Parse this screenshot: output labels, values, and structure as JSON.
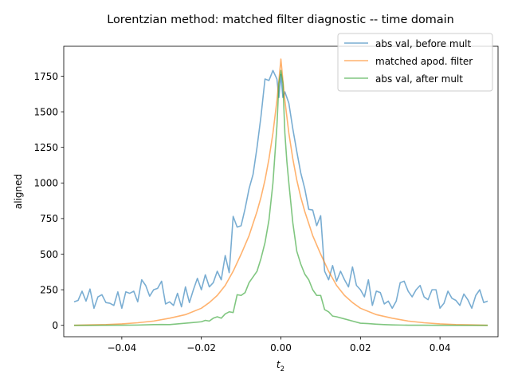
{
  "chart_data": {
    "type": "line",
    "title": "Lorentzian method:  matched filter diagnostic -- time domain",
    "xlabel_base": "t",
    "xlabel_sub": "2",
    "ylabel": "aligned",
    "xlim": [
      -0.0546,
      0.0546
    ],
    "ylim": [
      -80,
      1960
    ],
    "xticks": [
      -0.04,
      -0.02,
      0.0,
      0.02,
      0.04
    ],
    "xtick_labels": [
      "−0.04",
      "−0.02",
      "0.00",
      "0.02",
      "0.04"
    ],
    "yticks": [
      0,
      250,
      500,
      750,
      1000,
      1250,
      1500,
      1750
    ],
    "ytick_labels": [
      "0",
      "250",
      "500",
      "750",
      "1000",
      "1250",
      "1500",
      "1750"
    ],
    "grid": false,
    "legend_position": "top-right",
    "series": [
      {
        "name": "abs val, before mult",
        "color": "#1f77b4",
        "x": [
          -0.052,
          -0.051,
          -0.05,
          -0.049,
          -0.048,
          -0.047,
          -0.046,
          -0.045,
          -0.044,
          -0.043,
          -0.042,
          -0.041,
          -0.04,
          -0.039,
          -0.038,
          -0.037,
          -0.036,
          -0.035,
          -0.034,
          -0.033,
          -0.032,
          -0.031,
          -0.03,
          -0.029,
          -0.028,
          -0.027,
          -0.026,
          -0.025,
          -0.024,
          -0.023,
          -0.022,
          -0.021,
          -0.02,
          -0.019,
          -0.018,
          -0.017,
          -0.016,
          -0.015,
          -0.014,
          -0.013,
          -0.012,
          -0.011,
          -0.01,
          -0.009,
          -0.008,
          -0.007,
          -0.006,
          -0.005,
          -0.004,
          -0.003,
          -0.002,
          -0.001,
          -0.0005,
          0.0,
          0.0005,
          0.001,
          0.002,
          0.003,
          0.004,
          0.005,
          0.006,
          0.007,
          0.008,
          0.009,
          0.01,
          0.011,
          0.012,
          0.013,
          0.014,
          0.015,
          0.016,
          0.017,
          0.018,
          0.019,
          0.02,
          0.021,
          0.022,
          0.023,
          0.024,
          0.025,
          0.026,
          0.027,
          0.028,
          0.029,
          0.03,
          0.031,
          0.032,
          0.033,
          0.034,
          0.035,
          0.036,
          0.037,
          0.038,
          0.039,
          0.04,
          0.041,
          0.042,
          0.043,
          0.044,
          0.045,
          0.046,
          0.047,
          0.048,
          0.049,
          0.05,
          0.051,
          0.052
        ],
        "values": [
          165,
          175,
          240,
          170,
          255,
          120,
          200,
          215,
          160,
          155,
          140,
          235,
          120,
          235,
          225,
          240,
          165,
          320,
          280,
          205,
          250,
          260,
          310,
          150,
          165,
          140,
          225,
          130,
          270,
          160,
          250,
          330,
          250,
          355,
          270,
          300,
          380,
          320,
          490,
          370,
          765,
          690,
          700,
          820,
          960,
          1060,
          1250,
          1470,
          1730,
          1720,
          1790,
          1730,
          1600,
          1760,
          1600,
          1640,
          1560,
          1380,
          1220,
          1070,
          960,
          815,
          810,
          700,
          770,
          380,
          320,
          420,
          310,
          380,
          320,
          270,
          410,
          280,
          250,
          200,
          320,
          140,
          240,
          230,
          150,
          170,
          120,
          170,
          300,
          310,
          240,
          200,
          250,
          280,
          200,
          180,
          250,
          250,
          120,
          155,
          240,
          190,
          175,
          140,
          220,
          180,
          120,
          210,
          250,
          160,
          170
        ]
      },
      {
        "name": "matched apod. filter",
        "color": "#ff7f0e",
        "x": [
          -0.052,
          -0.048,
          -0.044,
          -0.04,
          -0.036,
          -0.032,
          -0.028,
          -0.024,
          -0.02,
          -0.018,
          -0.016,
          -0.014,
          -0.012,
          -0.01,
          -0.008,
          -0.006,
          -0.005,
          -0.004,
          -0.003,
          -0.002,
          -0.001,
          -0.0005,
          0.0,
          0.0005,
          0.001,
          0.002,
          0.003,
          0.004,
          0.005,
          0.006,
          0.008,
          0.01,
          0.012,
          0.014,
          0.016,
          0.018,
          0.02,
          0.024,
          0.028,
          0.032,
          0.036,
          0.04,
          0.044,
          0.048,
          0.052
        ],
        "values": [
          0,
          3,
          5,
          10,
          18,
          30,
          50,
          75,
          120,
          160,
          210,
          280,
          380,
          500,
          630,
          800,
          900,
          1020,
          1170,
          1350,
          1580,
          1720,
          1870,
          1720,
          1580,
          1350,
          1170,
          1020,
          900,
          800,
          630,
          500,
          380,
          280,
          210,
          160,
          120,
          75,
          50,
          30,
          18,
          10,
          5,
          3,
          0
        ]
      },
      {
        "name": "abs val, after mult",
        "color": "#2ca02c",
        "x": [
          -0.052,
          -0.048,
          -0.044,
          -0.04,
          -0.036,
          -0.032,
          -0.03,
          -0.028,
          -0.026,
          -0.024,
          -0.022,
          -0.02,
          -0.019,
          -0.018,
          -0.017,
          -0.016,
          -0.015,
          -0.014,
          -0.013,
          -0.012,
          -0.011,
          -0.01,
          -0.009,
          -0.008,
          -0.007,
          -0.006,
          -0.005,
          -0.004,
          -0.003,
          -0.002,
          -0.0015,
          -0.001,
          -0.0005,
          0.0,
          0.0005,
          0.001,
          0.0015,
          0.002,
          0.003,
          0.004,
          0.005,
          0.006,
          0.007,
          0.008,
          0.009,
          0.01,
          0.011,
          0.012,
          0.013,
          0.014,
          0.016,
          0.018,
          0.02,
          0.022,
          0.024,
          0.026,
          0.028,
          0.03,
          0.032,
          0.036,
          0.04,
          0.044,
          0.048,
          0.052
        ],
        "values": [
          0,
          0,
          1,
          1,
          2,
          5,
          6,
          5,
          10,
          15,
          20,
          25,
          35,
          30,
          50,
          60,
          50,
          80,
          95,
          90,
          215,
          210,
          230,
          300,
          340,
          380,
          470,
          580,
          740,
          1000,
          1200,
          1400,
          1700,
          1790,
          1700,
          1350,
          1150,
          1000,
          720,
          520,
          430,
          360,
          320,
          250,
          210,
          210,
          110,
          95,
          65,
          60,
          45,
          30,
          15,
          12,
          8,
          5,
          3,
          2,
          1,
          1,
          0,
          0,
          0,
          0
        ]
      }
    ]
  }
}
